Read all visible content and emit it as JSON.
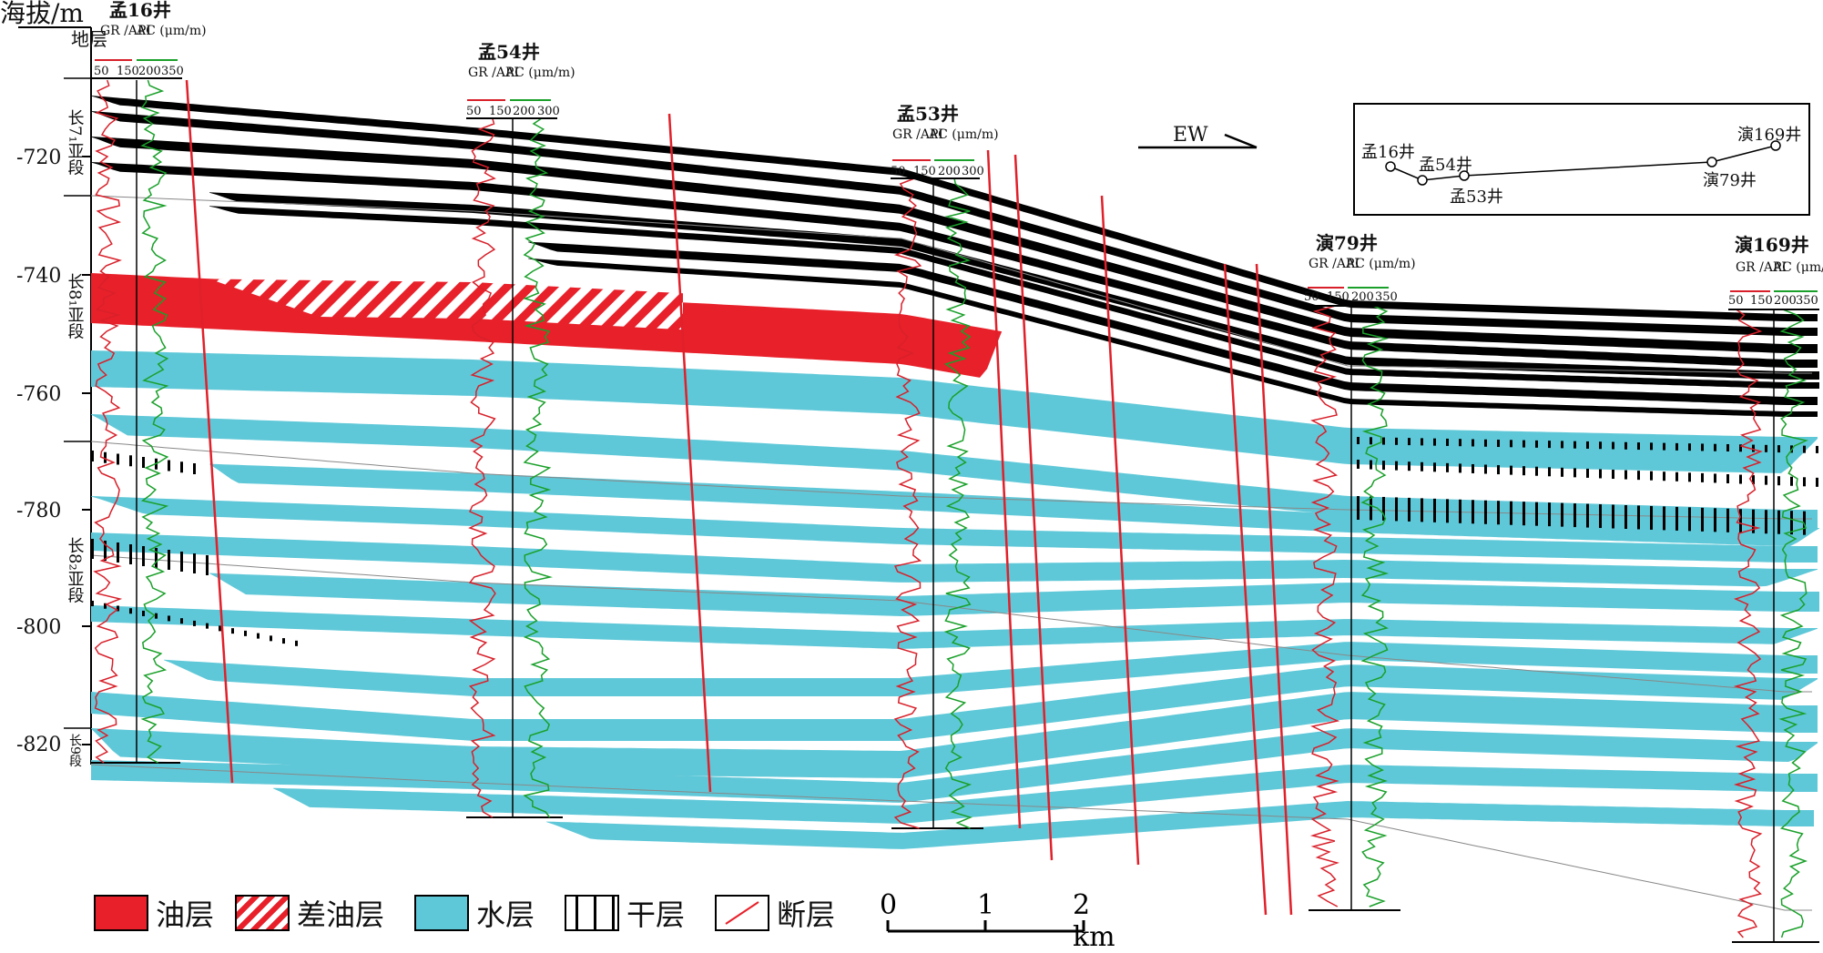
{
  "axis": {
    "title": "海拔/m",
    "ticks": [
      "-720",
      "-740",
      "-760",
      "-780",
      "-800",
      "-820"
    ]
  },
  "strat_column": {
    "header": "地层",
    "units": [
      {
        "label": "长7₁亚段"
      },
      {
        "label": "长8₁亚段"
      },
      {
        "label": "长8₂亚段"
      },
      {
        "label": "长9段"
      }
    ]
  },
  "wells": [
    {
      "name": "孟16井",
      "gr_label": "GR /API",
      "ac_label": "AC (μm/m)",
      "gr_scale": [
        "50",
        "150"
      ],
      "ac_scale": [
        "200",
        "350"
      ]
    },
    {
      "name": "孟54井",
      "gr_label": "GR /API",
      "ac_label": "AC (μm/m)",
      "gr_scale": [
        "50",
        "150"
      ],
      "ac_scale": [
        "200",
        "300"
      ]
    },
    {
      "name": "孟53井",
      "gr_label": "GR /API",
      "ac_label": "AC (μm/m)",
      "gr_scale": [
        "50",
        "150"
      ],
      "ac_scale": [
        "200",
        "300"
      ]
    },
    {
      "name": "演79井",
      "gr_label": "GR /API",
      "ac_label": "AC (μm/m)",
      "gr_scale": [
        "50",
        "150"
      ],
      "ac_scale": [
        "200",
        "350"
      ]
    },
    {
      "name": "演169井",
      "gr_label": "GR /API",
      "ac_label": "AC (μm/m)",
      "gr_scale": [
        "50",
        "150"
      ],
      "ac_scale": [
        "200",
        "350"
      ]
    }
  ],
  "direction_label": "EW",
  "location_map": {
    "wells": [
      "孟16井",
      "孟54井",
      "孟53井",
      "演79井",
      "演169井"
    ]
  },
  "legend": [
    {
      "label": "油层",
      "color": "#e8202a"
    },
    {
      "label": "差油层",
      "color": "#e8202a"
    },
    {
      "label": "水层",
      "color": "#5fc8d8"
    },
    {
      "label": "干层",
      "color": "#000000"
    },
    {
      "label": "断层",
      "color": "#e8202a"
    }
  ],
  "scale_bar": {
    "ticks": [
      "0",
      "1",
      "2 km"
    ]
  },
  "colors": {
    "oil": "#e8202a",
    "water": "#5fc8d8",
    "mudstone": "#000000",
    "gr_curve": "#d8202a",
    "ac_curve": "#1aa02a",
    "fault": "#e0202a"
  }
}
